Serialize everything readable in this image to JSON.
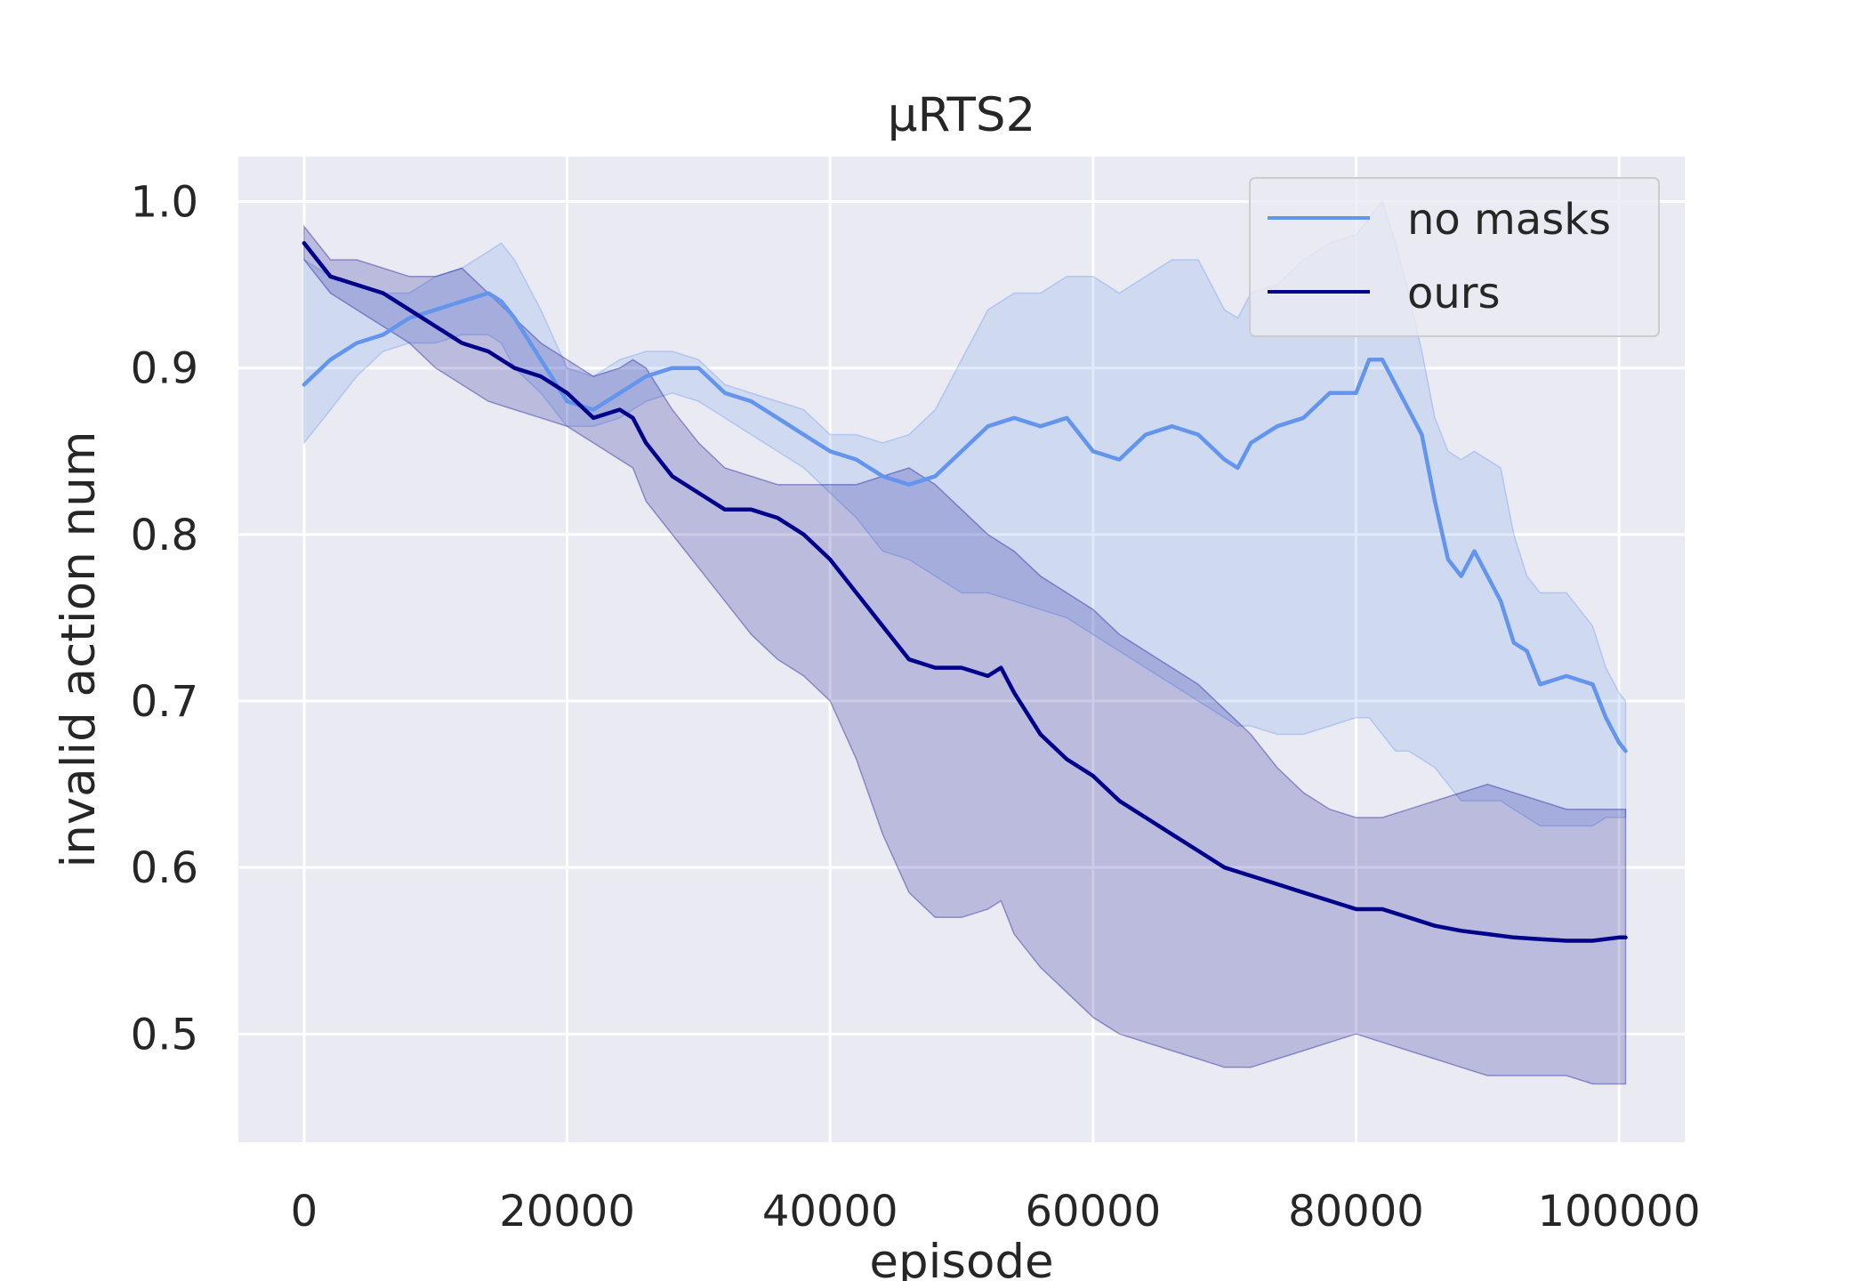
{
  "chart_data": {
    "type": "line",
    "title": "µRTS2",
    "xlabel": "episode",
    "ylabel": "invalid action num",
    "xlim": [
      -5000,
      105000
    ],
    "ylim": [
      0.435,
      1.027
    ],
    "xticks": [
      0,
      20000,
      40000,
      60000,
      80000,
      100000
    ],
    "xtick_labels": [
      "0",
      "20000",
      "40000",
      "60000",
      "80000",
      "100000"
    ],
    "yticks": [
      0.5,
      0.6,
      0.7,
      0.8,
      0.9,
      1.0
    ],
    "ytick_labels": [
      "0.5",
      "0.6",
      "0.7",
      "0.8",
      "0.9",
      "1.0"
    ],
    "grid": true,
    "legend_position": "top-right",
    "background": "#eaeaf2",
    "series": [
      {
        "name": "no masks",
        "color": "#6495ed",
        "x": [
          0,
          2000,
          4000,
          6000,
          8000,
          10000,
          12000,
          14000,
          15000,
          16000,
          18000,
          20000,
          22000,
          24000,
          26000,
          28000,
          30000,
          32000,
          34000,
          36000,
          38000,
          40000,
          42000,
          44000,
          46000,
          48000,
          50000,
          52000,
          54000,
          56000,
          58000,
          60000,
          62000,
          64000,
          66000,
          68000,
          70000,
          71000,
          72000,
          74000,
          76000,
          78000,
          80000,
          81000,
          82000,
          83000,
          84000,
          85000,
          86000,
          87000,
          88000,
          89000,
          90000,
          91000,
          92000,
          93000,
          94000,
          96000,
          98000,
          99000,
          100000,
          100500
        ],
        "y": [
          0.89,
          0.905,
          0.915,
          0.92,
          0.93,
          0.935,
          0.94,
          0.945,
          0.94,
          0.93,
          0.905,
          0.88,
          0.875,
          0.885,
          0.895,
          0.9,
          0.9,
          0.885,
          0.88,
          0.87,
          0.86,
          0.85,
          0.845,
          0.835,
          0.83,
          0.835,
          0.85,
          0.865,
          0.87,
          0.865,
          0.87,
          0.85,
          0.845,
          0.86,
          0.865,
          0.86,
          0.845,
          0.84,
          0.855,
          0.865,
          0.87,
          0.885,
          0.885,
          0.905,
          0.905,
          0.89,
          0.875,
          0.86,
          0.82,
          0.785,
          0.775,
          0.79,
          0.775,
          0.76,
          0.735,
          0.73,
          0.71,
          0.715,
          0.71,
          0.69,
          0.675,
          0.67
        ],
        "band_lower": [
          0.855,
          0.875,
          0.895,
          0.91,
          0.915,
          0.915,
          0.92,
          0.92,
          0.915,
          0.9,
          0.885,
          0.865,
          0.865,
          0.87,
          0.88,
          0.885,
          0.88,
          0.87,
          0.86,
          0.85,
          0.84,
          0.825,
          0.81,
          0.79,
          0.785,
          0.775,
          0.765,
          0.765,
          0.76,
          0.755,
          0.75,
          0.74,
          0.73,
          0.72,
          0.71,
          0.7,
          0.69,
          0.685,
          0.685,
          0.68,
          0.68,
          0.685,
          0.69,
          0.69,
          0.68,
          0.67,
          0.67,
          0.665,
          0.66,
          0.65,
          0.64,
          0.64,
          0.64,
          0.64,
          0.635,
          0.63,
          0.625,
          0.625,
          0.625,
          0.63,
          0.63,
          0.63
        ],
        "band_upper": [
          0.965,
          0.955,
          0.95,
          0.945,
          0.945,
          0.955,
          0.96,
          0.97,
          0.975,
          0.965,
          0.935,
          0.9,
          0.895,
          0.905,
          0.91,
          0.91,
          0.905,
          0.89,
          0.885,
          0.88,
          0.875,
          0.86,
          0.86,
          0.855,
          0.86,
          0.875,
          0.905,
          0.935,
          0.945,
          0.945,
          0.955,
          0.955,
          0.945,
          0.955,
          0.965,
          0.965,
          0.935,
          0.93,
          0.945,
          0.95,
          0.965,
          0.975,
          0.98,
          0.99,
          1.0,
          0.975,
          0.945,
          0.91,
          0.87,
          0.85,
          0.845,
          0.85,
          0.845,
          0.84,
          0.8,
          0.775,
          0.765,
          0.765,
          0.745,
          0.72,
          0.705,
          0.7
        ]
      },
      {
        "name": "ours",
        "color": "#00008b",
        "x": [
          0,
          2000,
          4000,
          6000,
          8000,
          10000,
          12000,
          14000,
          16000,
          18000,
          20000,
          22000,
          24000,
          25000,
          26000,
          28000,
          30000,
          32000,
          34000,
          36000,
          38000,
          40000,
          42000,
          44000,
          46000,
          48000,
          50000,
          52000,
          53000,
          54000,
          56000,
          58000,
          60000,
          62000,
          64000,
          66000,
          68000,
          70000,
          72000,
          74000,
          76000,
          78000,
          80000,
          82000,
          84000,
          86000,
          88000,
          90000,
          92000,
          94000,
          96000,
          98000,
          100000,
          100500
        ],
        "y": [
          0.975,
          0.955,
          0.95,
          0.945,
          0.935,
          0.925,
          0.915,
          0.91,
          0.9,
          0.895,
          0.885,
          0.87,
          0.875,
          0.87,
          0.855,
          0.835,
          0.825,
          0.815,
          0.815,
          0.81,
          0.8,
          0.785,
          0.765,
          0.745,
          0.725,
          0.72,
          0.72,
          0.715,
          0.72,
          0.705,
          0.68,
          0.665,
          0.655,
          0.64,
          0.63,
          0.62,
          0.61,
          0.6,
          0.595,
          0.59,
          0.585,
          0.58,
          0.575,
          0.575,
          0.57,
          0.565,
          0.562,
          0.56,
          0.558,
          0.557,
          0.556,
          0.556,
          0.558,
          0.558
        ],
        "band_lower": [
          0.965,
          0.945,
          0.935,
          0.925,
          0.915,
          0.9,
          0.89,
          0.88,
          0.875,
          0.87,
          0.865,
          0.855,
          0.845,
          0.84,
          0.82,
          0.8,
          0.78,
          0.76,
          0.74,
          0.725,
          0.715,
          0.7,
          0.665,
          0.62,
          0.585,
          0.57,
          0.57,
          0.575,
          0.58,
          0.56,
          0.54,
          0.525,
          0.51,
          0.5,
          0.495,
          0.49,
          0.485,
          0.48,
          0.48,
          0.485,
          0.49,
          0.495,
          0.5,
          0.495,
          0.49,
          0.485,
          0.48,
          0.475,
          0.475,
          0.475,
          0.475,
          0.47,
          0.47,
          0.47
        ],
        "band_upper": [
          0.985,
          0.965,
          0.965,
          0.96,
          0.955,
          0.955,
          0.96,
          0.945,
          0.93,
          0.915,
          0.905,
          0.895,
          0.9,
          0.905,
          0.9,
          0.875,
          0.855,
          0.84,
          0.835,
          0.83,
          0.83,
          0.83,
          0.83,
          0.835,
          0.84,
          0.83,
          0.815,
          0.8,
          0.795,
          0.79,
          0.775,
          0.765,
          0.755,
          0.74,
          0.73,
          0.72,
          0.71,
          0.695,
          0.68,
          0.66,
          0.645,
          0.635,
          0.63,
          0.63,
          0.635,
          0.64,
          0.645,
          0.65,
          0.645,
          0.64,
          0.635,
          0.635,
          0.635,
          0.635
        ]
      }
    ]
  }
}
